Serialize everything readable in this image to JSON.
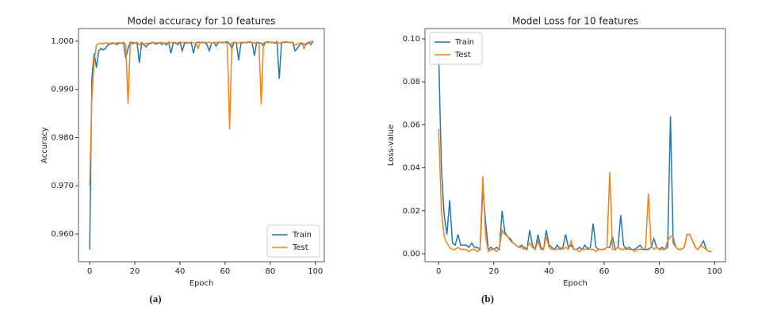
{
  "chart_data": [
    {
      "type": "line",
      "title": "Model accuracy for 10 features",
      "xlabel": "Epoch",
      "ylabel": "Accuracy",
      "caption": "(a)",
      "legend": "lower right",
      "x": [
        0,
        1,
        2,
        3,
        4,
        5,
        6,
        7,
        8,
        9,
        10,
        11,
        12,
        13,
        14,
        15,
        16,
        17,
        18,
        19,
        20,
        21,
        22,
        23,
        24,
        25,
        26,
        27,
        28,
        29,
        30,
        31,
        32,
        33,
        34,
        35,
        36,
        37,
        38,
        39,
        40,
        41,
        42,
        43,
        44,
        45,
        46,
        47,
        48,
        49,
        50,
        51,
        52,
        53,
        54,
        55,
        56,
        57,
        58,
        59,
        60,
        61,
        62,
        63,
        64,
        65,
        66,
        67,
        68,
        69,
        70,
        71,
        72,
        73,
        74,
        75,
        76,
        77,
        78,
        79,
        80,
        81,
        82,
        83,
        84,
        85,
        86,
        87,
        88,
        89,
        90,
        91,
        92,
        93,
        94,
        95,
        96,
        97,
        98,
        99
      ],
      "xlim": [
        -4.95,
        103.95
      ],
      "xticks": [
        0,
        20,
        40,
        60,
        80,
        100
      ],
      "ylim": [
        0.95424,
        1.00263
      ],
      "yticks": [
        {
          "value": 0.96,
          "label": "0.960"
        },
        {
          "value": 0.97,
          "label": "0.970"
        },
        {
          "value": 0.98,
          "label": "0.980"
        },
        {
          "value": 0.99,
          "label": "0.990"
        },
        {
          "value": 1.0,
          "label": "1.000"
        }
      ],
      "series": [
        {
          "name": "Train",
          "color": "#1f77b4",
          "values": [
            0.9568,
            0.9925,
            0.9975,
            0.9945,
            0.998,
            0.9985,
            0.9982,
            0.9985,
            0.9992,
            0.9994,
            0.9995,
            0.9996,
            0.9993,
            0.9996,
            0.9995,
            0.9997,
            0.9965,
            0.9985,
            0.9998,
            0.9995,
            0.9996,
            0.9997,
            0.9955,
            0.9995,
            0.9993,
            0.9988,
            0.9996,
            0.9995,
            0.9998,
            0.9994,
            0.9995,
            0.9997,
            0.9993,
            0.9996,
            0.9992,
            0.9998,
            0.9975,
            0.9996,
            0.9997,
            0.9993,
            0.9998,
            0.998,
            0.9995,
            0.9998,
            0.9996,
            0.9997,
            0.9975,
            0.9996,
            0.9998,
            0.9997,
            0.9998,
            0.9997,
            0.9993,
            0.998,
            0.9996,
            0.9998,
            0.999,
            0.9997,
            0.9998,
            0.9997,
            0.9998,
            0.9999,
            0.9995,
            0.9985,
            0.9998,
            0.9997,
            0.996,
            0.9995,
            0.9998,
            0.9997,
            0.9998,
            0.9999,
            0.9996,
            0.997,
            0.9998,
            0.9997,
            0.9996,
            0.999,
            0.9998,
            0.9999,
            0.9997,
            0.9998,
            0.9996,
            0.9999,
            0.9922,
            0.9997,
            0.9998,
            0.9999,
            0.9998,
            0.9997,
            0.9998,
            0.998,
            0.9985,
            0.9992,
            0.9996,
            0.9994,
            0.9993,
            0.9998,
            0.9993,
            1.0
          ]
        },
        {
          "name": "Test",
          "color": "#ff7f0e",
          "values": [
            0.97,
            0.9885,
            0.996,
            0.9992,
            0.9995,
            0.9996,
            0.9994,
            0.9997,
            0.9996,
            0.9995,
            0.9997,
            0.9996,
            0.9996,
            0.9997,
            0.9996,
            0.9998,
            0.9992,
            0.987,
            0.9997,
            0.9998,
            0.9997,
            0.9998,
            0.9992,
            0.9998,
            0.9994,
            0.9996,
            0.9992,
            0.9997,
            0.9998,
            0.9996,
            0.9997,
            0.9996,
            0.9998,
            0.9995,
            0.9997,
            0.9996,
            0.9997,
            0.9998,
            0.9995,
            0.9997,
            0.9998,
            0.9997,
            0.9998,
            0.9996,
            0.9997,
            0.9998,
            0.9997,
            0.9996,
            0.9985,
            0.9998,
            0.9997,
            0.9998,
            0.9997,
            0.9998,
            0.9996,
            0.9998,
            0.9997,
            0.9998,
            0.9997,
            0.9998,
            0.9997,
            0.9995,
            0.9817,
            0.9997,
            0.9998,
            0.9997,
            0.9996,
            0.9998,
            0.9997,
            0.9998,
            0.9997,
            0.9998,
            0.9997,
            0.9996,
            0.9998,
            0.9995,
            0.9869,
            0.9997,
            0.9998,
            0.9997,
            0.9998,
            0.9997,
            0.9998,
            0.9995,
            0.9996,
            0.9998,
            0.9997,
            0.9998,
            0.9997,
            0.9998,
            0.9997,
            0.9992,
            0.9994,
            0.9996,
            0.9997,
            0.9985,
            0.9996,
            0.9998,
            0.9999,
            1.0
          ]
        }
      ]
    },
    {
      "type": "line",
      "title": "Model Loss for 10 features",
      "xlabel": "Epoch",
      "ylabel": "Loss-value",
      "caption": "(b)",
      "legend": "upper left",
      "x": [
        0,
        1,
        2,
        3,
        4,
        5,
        6,
        7,
        8,
        9,
        10,
        11,
        12,
        13,
        14,
        15,
        16,
        17,
        18,
        19,
        20,
        21,
        22,
        23,
        24,
        25,
        26,
        27,
        28,
        29,
        30,
        31,
        32,
        33,
        34,
        35,
        36,
        37,
        38,
        39,
        40,
        41,
        42,
        43,
        44,
        45,
        46,
        47,
        48,
        49,
        50,
        51,
        52,
        53,
        54,
        55,
        56,
        57,
        58,
        59,
        60,
        61,
        62,
        63,
        64,
        65,
        66,
        67,
        68,
        69,
        70,
        71,
        72,
        73,
        74,
        75,
        76,
        77,
        78,
        79,
        80,
        81,
        82,
        83,
        84,
        85,
        86,
        87,
        88,
        89,
        90,
        91,
        92,
        93,
        94,
        95,
        96,
        97,
        98,
        99
      ],
      "xlim": [
        -4.95,
        103.95
      ],
      "xticks": [
        0,
        20,
        40,
        60,
        80,
        100
      ],
      "ylim": [
        -0.0037,
        0.1048
      ],
      "yticks": [
        {
          "value": 0,
          "label": "0.00"
        },
        {
          "value": 0.02,
          "label": "0.02"
        },
        {
          "value": 0.04,
          "label": "0.04"
        },
        {
          "value": 0.06,
          "label": "0.06"
        },
        {
          "value": 0.08,
          "label": "0.08"
        },
        {
          "value": 0.1,
          "label": "0.10"
        }
      ],
      "series": [
        {
          "name": "Train",
          "color": "#1f77b4",
          "values": [
            0.093,
            0.04,
            0.018,
            0.009,
            0.025,
            0.005,
            0.004,
            0.009,
            0.004,
            0.004,
            0.004,
            0.003,
            0.005,
            0.003,
            0.003,
            0.002,
            0.03,
            0.015,
            0.002,
            0.003,
            0.002,
            0.003,
            0.002,
            0.02,
            0.01,
            0.008,
            0.007,
            0.005,
            0.004,
            0.003,
            0.004,
            0.003,
            0.002,
            0.011,
            0.004,
            0.002,
            0.009,
            0.003,
            0.002,
            0.011,
            0.004,
            0.003,
            0.002,
            0.004,
            0.002,
            0.003,
            0.009,
            0.003,
            0.004,
            0.002,
            0.002,
            0.003,
            0.002,
            0.004,
            0.002,
            0.003,
            0.014,
            0.003,
            0.002,
            0.002,
            0.002,
            0.003,
            0.003,
            0.008,
            0.002,
            0.003,
            0.018,
            0.004,
            0.002,
            0.003,
            0.002,
            0.002,
            0.003,
            0.004,
            0.002,
            0.002,
            0.002,
            0.003,
            0.007,
            0.003,
            0.002,
            0.003,
            0.002,
            0.003,
            0.064,
            0.005,
            0.003,
            0.002,
            0.002,
            0.003,
            0.009,
            0.009,
            0.006,
            0.003,
            0.002,
            0.004,
            0.006,
            0.002,
            0.001,
            0.001
          ]
        },
        {
          "name": "Test",
          "color": "#ff7f0e",
          "values": [
            0.058,
            0.02,
            0.008,
            0.005,
            0.003,
            0.002,
            0.002,
            0.003,
            0.002,
            0.002,
            0.002,
            0.001,
            0.002,
            0.002,
            0.001,
            0.002,
            0.036,
            0.008,
            0.001,
            0.002,
            0.002,
            0.001,
            0.003,
            0.011,
            0.009,
            0.008,
            0.006,
            0.005,
            0.004,
            0.003,
            0.003,
            0.002,
            0.003,
            0.005,
            0.003,
            0.002,
            0.006,
            0.002,
            0.002,
            0.008,
            0.003,
            0.002,
            0.002,
            0.002,
            0.003,
            0.002,
            0.003,
            0.002,
            0.006,
            0.002,
            0.002,
            0.001,
            0.002,
            0.002,
            0.003,
            0.002,
            0.002,
            0.001,
            0.002,
            0.002,
            0.002,
            0.003,
            0.038,
            0.002,
            0.002,
            0.003,
            0.002,
            0.002,
            0.003,
            0.002,
            0.002,
            0.001,
            0.002,
            0.002,
            0.002,
            0.003,
            0.028,
            0.004,
            0.002,
            0.003,
            0.002,
            0.002,
            0.002,
            0.006,
            0.008,
            0.008,
            0.003,
            0.002,
            0.002,
            0.003,
            0.009,
            0.009,
            0.006,
            0.003,
            0.002,
            0.004,
            0.003,
            0.002,
            0.001,
            0.001
          ]
        }
      ]
    }
  ]
}
